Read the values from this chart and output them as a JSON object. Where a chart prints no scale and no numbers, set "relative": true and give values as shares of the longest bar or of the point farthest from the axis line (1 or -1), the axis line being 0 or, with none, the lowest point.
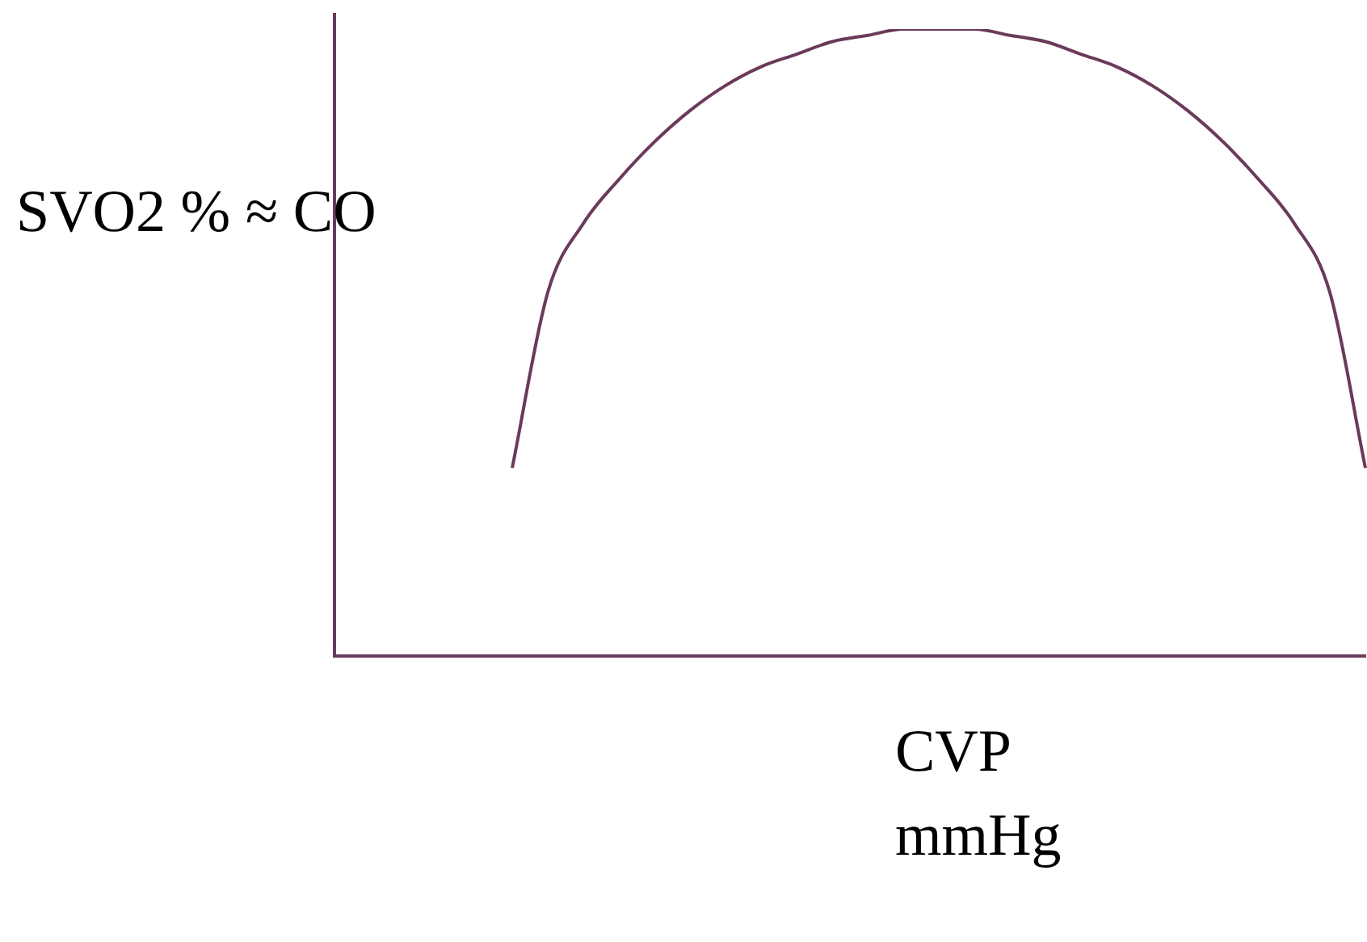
{
  "chart_data": {
    "type": "line",
    "relative": true,
    "ylabel": "SVO2 % ≈ CO",
    "xlabel": "CVP mmHg",
    "categories": [
      null,
      null,
      null,
      null,
      null,
      null,
      null,
      null,
      null,
      null,
      null,
      null,
      null,
      null,
      null,
      null,
      null,
      null,
      null,
      null,
      null,
      null,
      null,
      null,
      null,
      null,
      null,
      null,
      null,
      null
    ],
    "series": [
      {
        "color": "#6b3a5a",
        "values": [
          null,
          null,
          null,
          null,
          null,
          0.3,
          0.58,
          0.69,
          0.76,
          0.82,
          0.87,
          0.91,
          0.94,
          0.96,
          0.98,
          0.99,
          1.0,
          1.0,
          1.0,
          0.99,
          0.98,
          0.96,
          0.94,
          0.91,
          0.87,
          0.82,
          0.76,
          0.69,
          0.58,
          0.3
        ]
      }
    ],
    "grid": false,
    "legend": false,
    "marker": "none",
    "line_style": "solid",
    "tick_labels": false
  }
}
